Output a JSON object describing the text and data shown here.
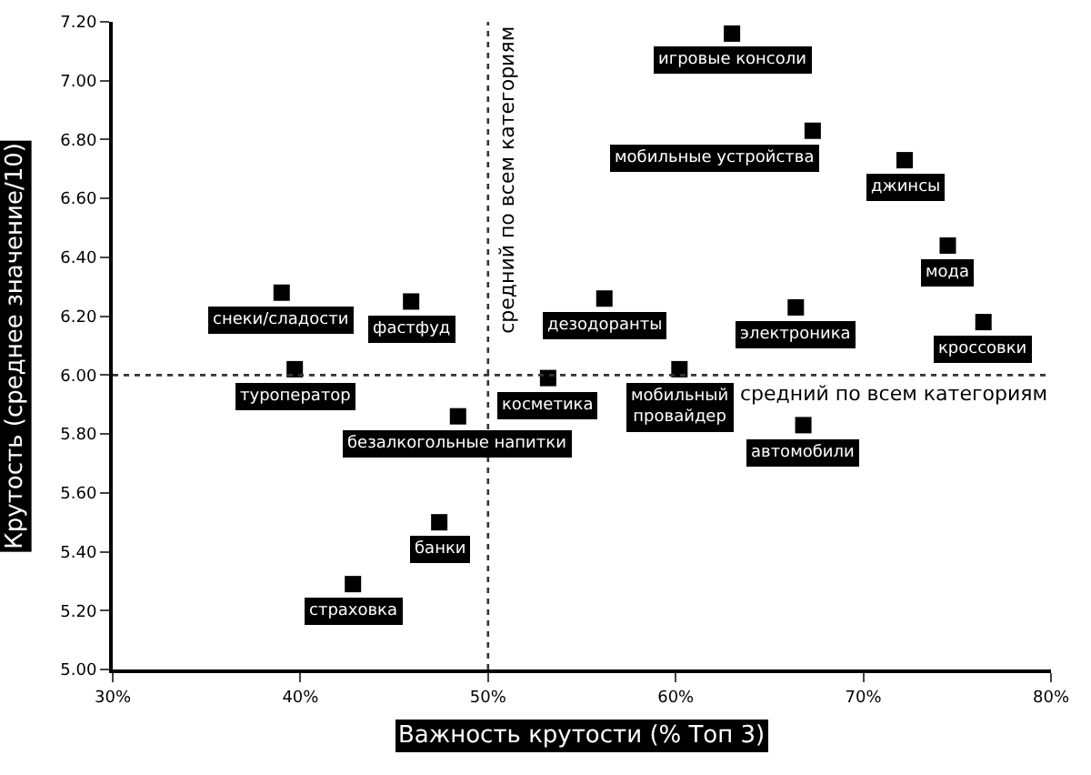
{
  "chart_data": {
    "type": "scatter",
    "xlabel": "Важность крутости (% Топ 3)",
    "ylabel": "Крутость (среднее значение/10)",
    "x": [
      63,
      67.3,
      72.2,
      74.5,
      76.4,
      66.4,
      56.2,
      53.2,
      60.2,
      66.8,
      39.0,
      45.9,
      39.7,
      48.4,
      47.4,
      42.8
    ],
    "values": [
      7.16,
      6.83,
      6.73,
      6.44,
      6.18,
      6.23,
      6.26,
      5.99,
      6.02,
      5.83,
      6.28,
      6.25,
      6.02,
      5.86,
      5.5,
      5.29
    ],
    "color": "#000000",
    "marker": "square",
    "annotations": [
      {
        "text": "игровые консоли",
        "x": 63,
        "y": 7.16
      },
      {
        "text": "мобильные устройства",
        "x": 67.3,
        "y": 6.83
      },
      {
        "text": "джинсы",
        "x": 72.2,
        "y": 6.73
      },
      {
        "text": "мода",
        "x": 74.5,
        "y": 6.44
      },
      {
        "text": "кроссовки",
        "x": 76.4,
        "y": 6.18
      },
      {
        "text": "электроника",
        "x": 66.4,
        "y": 6.23
      },
      {
        "text": "дезодоранты",
        "x": 56.2,
        "y": 6.26
      },
      {
        "text": "косметика",
        "x": 53.2,
        "y": 5.99
      },
      {
        "text": "мобильный\nпровайдер",
        "x": 60.2,
        "y": 6.02
      },
      {
        "text": "автомобили",
        "x": 66.8,
        "y": 5.83
      },
      {
        "text": "снеки/сладости",
        "x": 39.0,
        "y": 6.28
      },
      {
        "text": "фастфуд",
        "x": 45.9,
        "y": 6.25
      },
      {
        "text": "туроператор",
        "x": 39.7,
        "y": 6.02
      },
      {
        "text": "безалкогольные напитки",
        "x": 48.4,
        "y": 5.86
      },
      {
        "text": "банки",
        "x": 47.4,
        "y": 5.5
      },
      {
        "text": "страховка",
        "x": 42.8,
        "y": 5.29
      }
    ],
    "ref_lines": [
      {
        "axis": "x",
        "value": 50,
        "label": "средний по всем категориям",
        "line_style": "dotted"
      },
      {
        "axis": "y",
        "value": 6.0,
        "label": "средний по всем категориям",
        "line_style": "dotted"
      }
    ],
    "xlim": [
      30,
      80
    ],
    "xticks": [
      {
        "value": 30,
        "label": "30%"
      },
      {
        "value": 40,
        "label": "40%"
      },
      {
        "value": 50,
        "label": "50%"
      },
      {
        "value": 60,
        "label": "60%"
      },
      {
        "value": 70,
        "label": "70%"
      },
      {
        "value": 80,
        "label": "80%"
      }
    ],
    "ylim": [
      5.0,
      7.2
    ],
    "yticks": [
      {
        "value": 5.0,
        "label": "5.00"
      },
      {
        "value": 5.2,
        "label": "5.20"
      },
      {
        "value": 5.4,
        "label": "5.40"
      },
      {
        "value": 5.6,
        "label": "5.60"
      },
      {
        "value": 5.8,
        "label": "5.80"
      },
      {
        "value": 6.0,
        "label": "6.00"
      },
      {
        "value": 6.2,
        "label": "6.20"
      },
      {
        "value": 6.4,
        "label": "6.40"
      },
      {
        "value": 6.6,
        "label": "6.60"
      },
      {
        "value": 6.8,
        "label": "6.80"
      },
      {
        "value": 7.0,
        "label": "7.00"
      },
      {
        "value": 7.2,
        "label": "7.20"
      }
    ]
  }
}
